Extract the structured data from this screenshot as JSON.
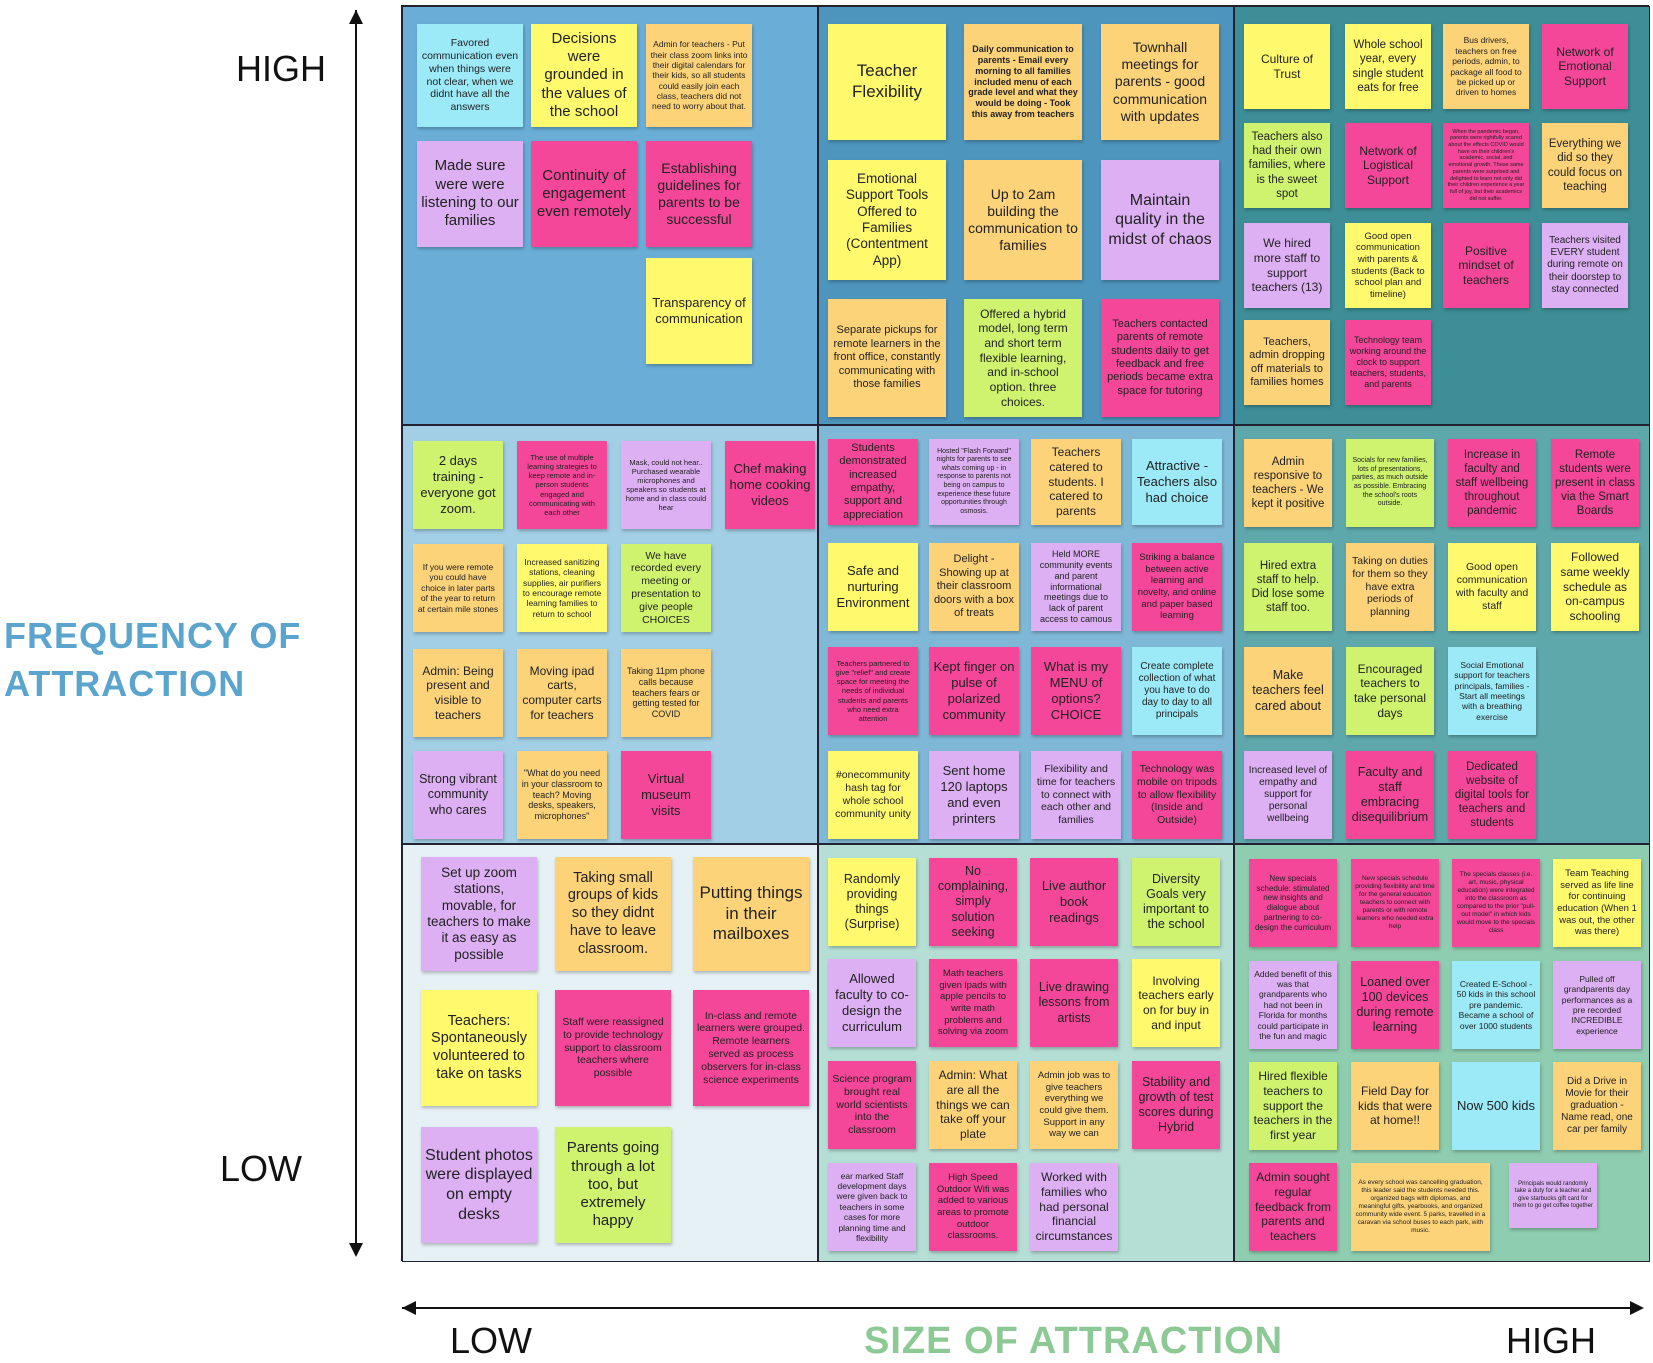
{
  "colors": {
    "yellow": "#FFF96E",
    "orange": "#FDD37A",
    "pink": "#F5479A",
    "purple": "#DCB0F3",
    "green": "#CFF36F",
    "cyan": "#9CEAF8",
    "cell_r0c0": "#6AAED8",
    "cell_r0c1": "#4E95BD",
    "cell_r0c2": "#3D8E96",
    "cell_r1c0": "#A2CFE5",
    "cell_r1c1": "#7FB8D6",
    "cell_r1c2": "#5EA8AC",
    "cell_r2c0": "#E6F1F5",
    "cell_r2c1": "#B5DED5",
    "cell_r2c2": "#8FCDB0",
    "y_title": "#5BA4CE",
    "x_title": "#8DC995"
  },
  "axes": {
    "y_high": "HIGH",
    "y_low": "LOW",
    "y_title_line1": "FREQUENCY OF",
    "y_title_line2": "ATTRACTION",
    "x_low": "LOW",
    "x_high": "HIGH",
    "x_title": "SIZE OF ATTRACTION"
  },
  "cells": [
    {
      "row": 0,
      "col": 0,
      "notes": [
        {
          "text": "Favored communication even when things were not clear, when we didnt have all the answers",
          "color": "cyan",
          "fs": 10.5
        },
        {
          "text": "Decisions were grounded in the values of the school",
          "color": "yellow",
          "fs": 15
        },
        {
          "text": "Admin for teachers - Put their class zoom links into their digital calendars for their kids, so all students could easily join each class, teachers did not need to worry about that.",
          "color": "orange",
          "fs": 8.5
        },
        {
          "text": "Made sure were were listening to our families",
          "color": "purple",
          "fs": 15
        },
        {
          "text": "Continuity of engagement even remotely",
          "color": "pink",
          "fs": 15
        },
        {
          "text": "Establishing guidelines for parents to be successful",
          "color": "pink",
          "fs": 14
        },
        {
          "text": "Transparency of communication",
          "color": "yellow",
          "fs": 13
        }
      ]
    },
    {
      "row": 0,
      "col": 1,
      "notes": [
        {
          "text": "Teacher Flexibility",
          "color": "yellow",
          "fs": 17
        },
        {
          "text": "Daily communication to parents - Email every morning to all families included menu of each grade level and what they would be doing - Took this away from teachers",
          "color": "orange",
          "fs": 9,
          "bold": true
        },
        {
          "text": "Townhall meetings for parents - good communication with updates",
          "color": "orange",
          "fs": 14
        },
        {
          "text": "Emotional Support Tools Offered to Families (Contentment App)",
          "color": "yellow",
          "fs": 13.5
        },
        {
          "text": "Up to 2am building the communication to families",
          "color": "orange",
          "fs": 14
        },
        {
          "text": "Maintain quality in the midst of chaos",
          "color": "purple",
          "fs": 16
        },
        {
          "text": "Separate pickups for remote learners in the front office, constantly communicating with those families",
          "color": "orange",
          "fs": 11
        },
        {
          "text": "Offered a hybrid model, long term and short term flexible learning, and in-school option. three choices.",
          "color": "green",
          "fs": 12
        },
        {
          "text": "Teachers contacted parents of remote students daily to get feedback and free periods became extra space for tutoring",
          "color": "pink",
          "fs": 11
        }
      ]
    },
    {
      "row": 0,
      "col": 2,
      "notes": [
        {
          "text": "Culture of Trust",
          "color": "yellow",
          "fs": 12
        },
        {
          "text": "Whole school year, every single student eats for free",
          "color": "yellow",
          "fs": 11.5
        },
        {
          "text": "Bus drivers, teachers on free periods, admin, to package all food to be picked up or driven to homes",
          "color": "orange",
          "fs": 8.5
        },
        {
          "text": "Network of Emotional Support",
          "color": "pink",
          "fs": 12
        },
        {
          "text": "Teachers also had their own families, where is the sweet spot",
          "color": "green",
          "fs": 11.5
        },
        {
          "text": "Network of Logistical Support",
          "color": "pink",
          "fs": 12
        },
        {
          "text": "When the pandemic began, parents were rightfully scared about the effects COVID would have on their children's academic, social, and emotional growth. These same parents were surprised and delighted to learn not only did their children experience a year full of joy, but their academics did not suffer.",
          "color": "pink",
          "fs": 5.5
        },
        {
          "text": "Everything we did so they could focus on teaching",
          "color": "orange",
          "fs": 11.5
        },
        {
          "text": "We hired more staff to support teachers (13)",
          "color": "purple",
          "fs": 12
        },
        {
          "text": "Good open communication with parents & students (Back to school plan and timeline)",
          "color": "yellow",
          "fs": 9.5
        },
        {
          "text": "Positive mindset of teachers",
          "color": "pink",
          "fs": 12
        },
        {
          "text": "Teachers visited EVERY student during remote on their doorstep to stay connected",
          "color": "purple",
          "fs": 10
        },
        {
          "text": "Teachers, admin dropping off materials to families homes",
          "color": "orange",
          "fs": 11
        },
        {
          "text": "Technology team working around the clock to support teachers, students, and parents",
          "color": "pink",
          "fs": 9
        }
      ]
    },
    {
      "row": 1,
      "col": 0,
      "notes": [
        {
          "text": "2 days training - everyone got zoom.",
          "color": "green",
          "fs": 13
        },
        {
          "text": "The use of multiple learning strategies to keep remote and in-person students engaged and communicating with each other",
          "color": "pink",
          "fs": 7.5
        },
        {
          "text": "Mask, could not hear.. Purchased wearable microphones and speakers so students at home and in class could hear",
          "color": "purple",
          "fs": 7.5
        },
        {
          "text": "Chef making home cooking videos",
          "color": "pink",
          "fs": 13
        },
        {
          "text": "If you were remote you could have choice in later parts of the year to return at certain mile stones",
          "color": "orange",
          "fs": 8.5
        },
        {
          "text": "Increased sanitizing stations, cleaning supplies, air purifiers to encourage remote learning families to return to school",
          "color": "yellow",
          "fs": 8.5
        },
        {
          "text": "We have recorded every meeting or presentation to give people CHOICES",
          "color": "green",
          "fs": 10.5
        },
        {
          "text": "Admin: Being present and visible to teachers",
          "color": "orange",
          "fs": 12
        },
        {
          "text": "Moving ipad carts, computer carts for teachers",
          "color": "orange",
          "fs": 12
        },
        {
          "text": "Taking 11pm phone calls because teachers fears or getting tested for COVID",
          "color": "orange",
          "fs": 9
        },
        {
          "text": "Strong vibrant community who cares",
          "color": "purple",
          "fs": 12.5
        },
        {
          "text": "\"What do you need in your classroom to teach? Moving desks, speakers, microphones\"",
          "color": "orange",
          "fs": 9
        },
        {
          "text": "Virtual museum visits",
          "color": "pink",
          "fs": 13
        }
      ]
    },
    {
      "row": 1,
      "col": 1,
      "notes": [
        {
          "text": "Students demonstrated increased empathy, support and appreciation",
          "color": "pink",
          "fs": 11
        },
        {
          "text": "Hosted \"Flash Forward\" nights for parents to see whats coming up - in response to parents not being on campus to experience these future opportunities through osmosis.",
          "color": "purple",
          "fs": 7
        },
        {
          "text": "Teachers catered to students. I catered to parents",
          "color": "orange",
          "fs": 12
        },
        {
          "text": "Attractive - Teachers also had choice",
          "color": "cyan",
          "fs": 13
        },
        {
          "text": "Safe and nurturing Environment",
          "color": "yellow",
          "fs": 13
        },
        {
          "text": "Delight - Showing up at their classroom doors with a box of treats",
          "color": "orange",
          "fs": 11
        },
        {
          "text": "Held MORE community events and parent informational meetings due to lack of parent access to camous",
          "color": "purple",
          "fs": 9
        },
        {
          "text": "Striking a balance between active learning and novelty, and online and paper based learning",
          "color": "pink",
          "fs": 9.5
        },
        {
          "text": "Teachers partnered to give \"relief\" and create space for meeting the needs of individual students and parents who need extra attention",
          "color": "pink",
          "fs": 7.5
        },
        {
          "text": "Kept finger on pulse of polarized community",
          "color": "pink",
          "fs": 13
        },
        {
          "text": "What is my MENU of options? CHOICE",
          "color": "pink",
          "fs": 13
        },
        {
          "text": "Create complete collection of what you have to do day to day to all principals",
          "color": "cyan",
          "fs": 10
        },
        {
          "text": "#onecommunity hash tag for whole school community unity",
          "color": "yellow",
          "fs": 10.5
        },
        {
          "text": "Sent home 120 laptops and even printers",
          "color": "purple",
          "fs": 13
        },
        {
          "text": "Flexibility and time for teachers to connect with each other and families",
          "color": "purple",
          "fs": 10.5
        },
        {
          "text": "Technology was mobile on tripods to allow flexibility (Inside and Outside)",
          "color": "pink",
          "fs": 10.5
        }
      ]
    },
    {
      "row": 1,
      "col": 2,
      "notes": [
        {
          "text": "Admin responsive to teachers - We kept it positive",
          "color": "orange",
          "fs": 11.5
        },
        {
          "text": "Socials for new families, lots of presentations, parties, as much outside as possible. Embracing the school's roots outside.",
          "color": "green",
          "fs": 7
        },
        {
          "text": "Increase in faculty and staff wellbeing throughout pandemic",
          "color": "pink",
          "fs": 11.5
        },
        {
          "text": "Remote students were present in class via the Smart Boards",
          "color": "pink",
          "fs": 11.5
        },
        {
          "text": "Hired extra staff to help. Did lose some staff too.",
          "color": "green",
          "fs": 11.5
        },
        {
          "text": "Taking on duties for them so they have extra periods of planning",
          "color": "orange",
          "fs": 10.5
        },
        {
          "text": "Good open communication with faculty and staff",
          "color": "yellow",
          "fs": 10.5
        },
        {
          "text": "Followed same weekly schedule as on-campus schooling",
          "color": "yellow",
          "fs": 12
        },
        {
          "text": "Make teachers feel cared about",
          "color": "orange",
          "fs": 12.5
        },
        {
          "text": "Encouraged teachers to take personal days",
          "color": "green",
          "fs": 12
        },
        {
          "text": "Social Emotional support for teachers principals, families - Start all meetings with a breathing exercise",
          "color": "cyan",
          "fs": 8.5
        },
        {
          "text": "Increased level of empathy and support for personal wellbeing",
          "color": "purple",
          "fs": 10
        },
        {
          "text": "Faculty and staff embracing disequilibrium",
          "color": "pink",
          "fs": 12.5
        },
        {
          "text": "Dedicated website of digital tools for teachers and students",
          "color": "pink",
          "fs": 11.5
        }
      ]
    },
    {
      "row": 2,
      "col": 0,
      "notes": [
        {
          "text": "Set up zoom stations, movable, for teachers to make it as easy as possible",
          "color": "purple",
          "fs": 13.5
        },
        {
          "text": "Taking small groups of kids so they didnt have to leave classroom.",
          "color": "orange",
          "fs": 14.5
        },
        {
          "text": "Putting things in their mailboxes",
          "color": "orange",
          "fs": 17
        },
        {
          "text": "Teachers: Spontaneously volunteered to take on tasks",
          "color": "yellow",
          "fs": 14.5
        },
        {
          "text": "Staff were reassigned to provide technology support to classroom teachers where possible",
          "color": "pink",
          "fs": 10.5
        },
        {
          "text": "In-class and remote learners were grouped. Remote learners served as process observers for in-class science experiments",
          "color": "pink",
          "fs": 10.5
        },
        {
          "text": "Student photos were displayed on empty desks",
          "color": "purple",
          "fs": 16
        },
        {
          "text": "Parents going through a lot too, but extremely happy",
          "color": "green",
          "fs": 15
        }
      ]
    },
    {
      "row": 2,
      "col": 1,
      "notes": [
        {
          "text": "Randomly providing things (Surprise)",
          "color": "yellow",
          "fs": 12.5
        },
        {
          "text": "No complaining, simply solution seeking",
          "color": "pink",
          "fs": 12.5
        },
        {
          "text": "Live author book readings",
          "color": "pink",
          "fs": 13
        },
        {
          "text": "Diversity Goals very important to the school",
          "color": "green",
          "fs": 12.5
        },
        {
          "text": "Allowed faculty to co-design the curriculum",
          "color": "purple",
          "fs": 13
        },
        {
          "text": "Math teachers given ipads with apple pencils to write math problems and solving via zoom",
          "color": "pink",
          "fs": 9.5
        },
        {
          "text": "Live drawing lessons from artists",
          "color": "pink",
          "fs": 12.5
        },
        {
          "text": "Involving teachers early on for buy in and input",
          "color": "yellow",
          "fs": 12
        },
        {
          "text": "Science program brought real world scientists into the classroom",
          "color": "pink",
          "fs": 10.5
        },
        {
          "text": "Admin: What are all the things we can take off your plate",
          "color": "orange",
          "fs": 12
        },
        {
          "text": "Admin job was to give teachers everything we could give them. Support in any way we can",
          "color": "orange",
          "fs": 9.5
        },
        {
          "text": "Stability and growth of test scores during Hybrid",
          "color": "pink",
          "fs": 12.5
        },
        {
          "text": "ear marked Staff development days were given back to teachers in some cases for more planning time and flexibility",
          "color": "purple",
          "fs": 8.5
        },
        {
          "text": "High Speed Outdoor Wifi was added to various areas to promote outdoor classrooms.",
          "color": "pink",
          "fs": 9.5
        },
        {
          "text": "Worked with families who had personal financial circumstances",
          "color": "purple",
          "fs": 12
        }
      ]
    },
    {
      "row": 2,
      "col": 2,
      "notes": [
        {
          "text": "New specials schedule: stimulated new insights and dialogue about partnering to co-design the curriculum",
          "color": "pink",
          "fs": 8
        },
        {
          "text": "New specials schedule providing flexibility and time for the general education teachers to connect with parents or with remote learners who needed extra help",
          "color": "pink",
          "fs": 6.5
        },
        {
          "text": "The specials classes (i.e. art, music, physical education) were integrated into the classroom as compared to the prior \"pull-out model\" in which kids would move to the specials class",
          "color": "pink",
          "fs": 6.5
        },
        {
          "text": "Team Teaching served as life line for continuing education (When 1 was out, the other was there)",
          "color": "yellow",
          "fs": 9.5
        },
        {
          "text": "Added benefit of this was that grandparents who had not been in Florida for months could participate in the fun and magic",
          "color": "purple",
          "fs": 8.5
        },
        {
          "text": "Loaned over 100 devices during remote learning",
          "color": "pink",
          "fs": 12.5
        },
        {
          "text": "Created E-School - 50 kids in this school pre pandemic. Became a school of over 1000 students",
          "color": "cyan",
          "fs": 8.5
        },
        {
          "text": "Pulled off grandparents day performances as a pre recorded INCREDIBLE experience",
          "color": "purple",
          "fs": 8.5
        },
        {
          "text": "Hired flexible teachers to support the teachers in the first year",
          "color": "green",
          "fs": 12
        },
        {
          "text": "Field Day for kids that were at home!!",
          "color": "orange",
          "fs": 12
        },
        {
          "text": "Now 500 kids",
          "color": "cyan",
          "fs": 13
        },
        {
          "text": "Did a Drive in Movie for their graduation - Name read, one car per family",
          "color": "orange",
          "fs": 10
        },
        {
          "text": "Admin sought regular feedback from parents and teachers",
          "color": "pink",
          "fs": 12
        },
        {
          "text": "As every school was cancelling graduation, this leader said the students needed this. organized bags with diplomas, and meaningful gifts, yearbooks, and organized community wide event. 5 parks, travelled in a caravan via school buses to each park, with music.",
          "color": "orange",
          "fs": 6.5
        },
        {
          "text": "Principals would randomly take a duty for a teacher and give starbucks gift card for them to go get coffee together",
          "color": "purple",
          "fs": 6
        }
      ]
    }
  ]
}
